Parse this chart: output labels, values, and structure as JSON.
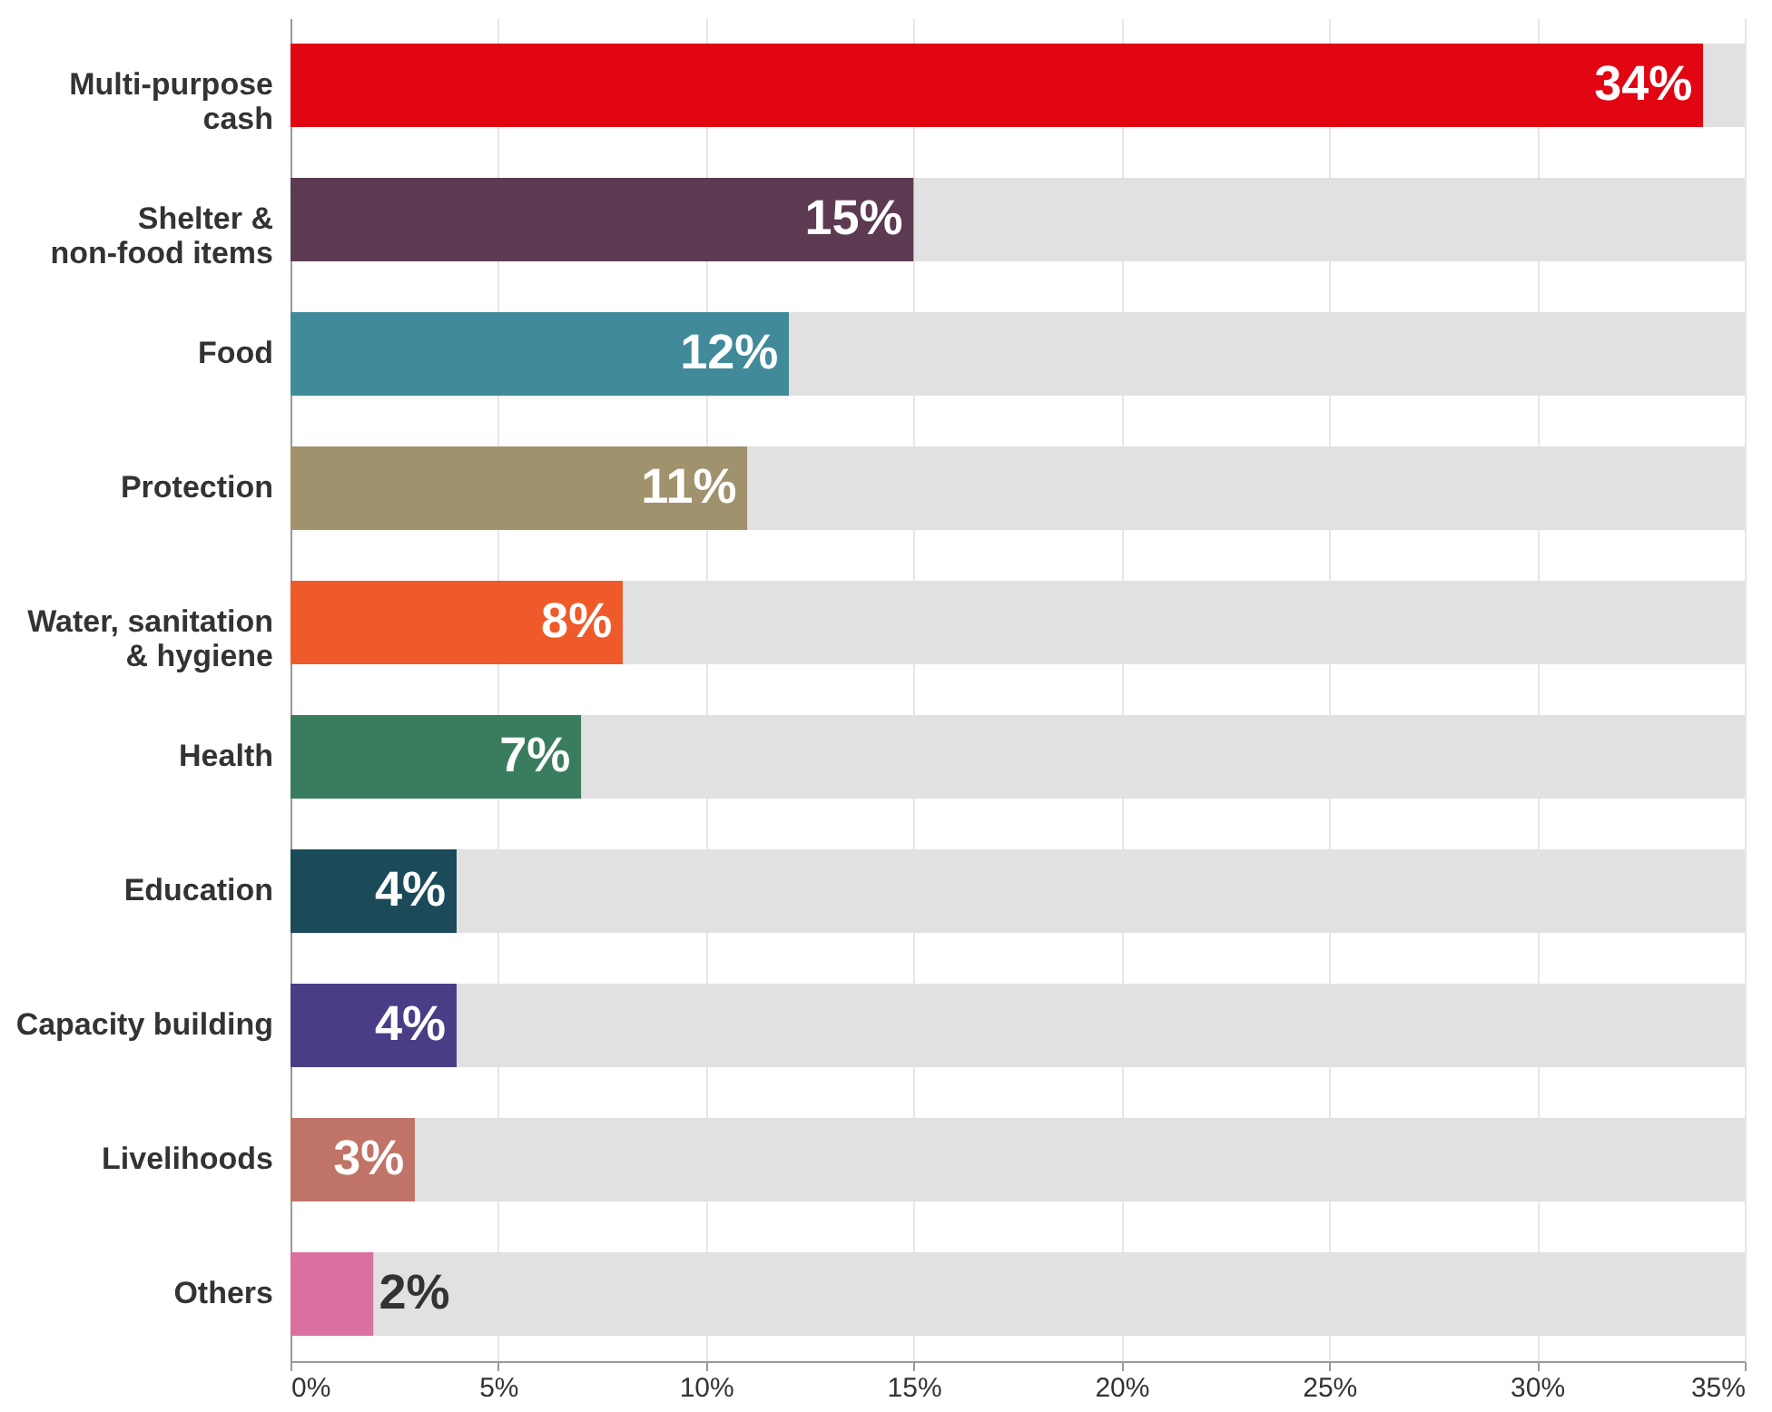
{
  "chart_data": {
    "type": "bar",
    "orientation": "horizontal",
    "stacked": true,
    "categories": [
      "Multi-purpose cash",
      "Shelter & non-food items",
      "Food",
      "Protection",
      "Water, sanitation & hygiene",
      "Health",
      "Education",
      "Capacity building",
      "Livelihoods",
      "Others"
    ],
    "series": [
      {
        "colors": [
          "#e20613",
          "#5c3a52",
          "#418a9a",
          "#a0926d",
          "#ee5a2a",
          "#3a7d5e",
          "#1b4a59",
          "#4a3d86",
          "#bf7467",
          "#d970a0"
        ],
        "values": [
          34,
          15,
          12,
          11,
          8,
          7,
          4,
          4,
          3,
          2
        ],
        "value_labels": [
          "34%",
          "15%",
          "12%",
          "11%",
          "8%",
          "7%",
          "4%",
          "4%",
          "3%",
          "2%"
        ]
      },
      {
        "color": "#e1e1e1",
        "values": [
          1,
          20,
          23,
          24,
          27,
          28,
          31,
          31,
          32,
          33
        ]
      }
    ],
    "xlim": [
      0,
      35
    ],
    "xticks": [
      {
        "value": 0,
        "label": "0%"
      },
      {
        "value": 5,
        "label": "5%"
      },
      {
        "value": 10,
        "label": "10%"
      },
      {
        "value": 15,
        "label": "15%"
      },
      {
        "value": 20,
        "label": "20%"
      },
      {
        "value": 25,
        "label": "25%"
      },
      {
        "value": 30,
        "label": "30%"
      },
      {
        "value": 35,
        "label": "35%"
      }
    ],
    "grid": "x"
  }
}
